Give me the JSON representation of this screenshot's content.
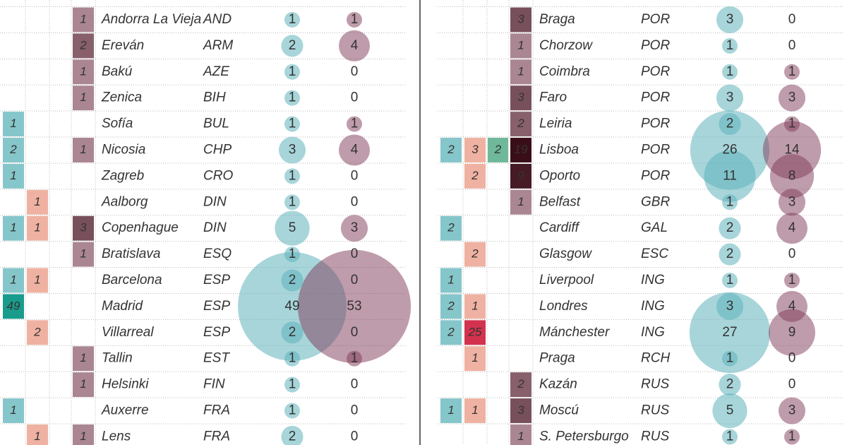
{
  "panels": [
    {
      "rows": [
        {
          "mauve": 1,
          "city": "Andorra La Vieja",
          "country": "AND",
          "home": 1,
          "away": 1
        },
        {
          "mauve": 2,
          "city": "Ereván",
          "country": "ARM",
          "home": 2,
          "away": 4
        },
        {
          "mauve": 1,
          "city": "Bakú",
          "country": "AZE",
          "home": 1,
          "away": 0
        },
        {
          "mauve": 1,
          "city": "Zenica",
          "country": "BIH",
          "home": 1,
          "away": 0
        },
        {
          "teal": 1,
          "city": "Sofía",
          "country": "BUL",
          "home": 1,
          "away": 1
        },
        {
          "teal": 2,
          "mauve": 1,
          "city": "Nicosia",
          "country": "CHP",
          "home": 3,
          "away": 4
        },
        {
          "teal": 1,
          "city": "Zagreb",
          "country": "CRO",
          "home": 1,
          "away": 0
        },
        {
          "salmon": 1,
          "city": "Aalborg",
          "country": "DIN",
          "home": 1,
          "away": 0
        },
        {
          "teal": 1,
          "salmon": 1,
          "mauve": 3,
          "city": "Copenhague",
          "country": "DIN",
          "home": 5,
          "away": 3
        },
        {
          "mauve": 1,
          "city": "Bratislava",
          "country": "ESQ",
          "home": 1,
          "away": 0
        },
        {
          "teal": 1,
          "salmon": 1,
          "city": "Barcelona",
          "country": "ESP",
          "home": 2,
          "away": 0
        },
        {
          "teal": 49,
          "city": "Madrid",
          "country": "ESP",
          "home": 49,
          "away": 53
        },
        {
          "salmon": 2,
          "city": "Villarreal",
          "country": "ESP",
          "home": 2,
          "away": 0
        },
        {
          "mauve": 1,
          "city": "Tallin",
          "country": "EST",
          "home": 1,
          "away": 1
        },
        {
          "mauve": 1,
          "city": "Helsinki",
          "country": "FIN",
          "home": 1,
          "away": 0
        },
        {
          "teal": 1,
          "city": "Auxerre",
          "country": "FRA",
          "home": 1,
          "away": 0
        },
        {
          "salmon": 1,
          "mauve": 1,
          "city": "Lens",
          "country": "FRA",
          "home": 2,
          "away": 0
        }
      ]
    },
    {
      "rows": [
        {
          "mauve": 3,
          "city": "Braga",
          "country": "POR",
          "home": 3,
          "away": 0
        },
        {
          "mauve": 1,
          "city": "Chorzow",
          "country": "POR",
          "home": 1,
          "away": 0
        },
        {
          "mauve": 1,
          "city": "Coimbra",
          "country": "POR",
          "home": 1,
          "away": 1
        },
        {
          "mauve": 3,
          "city": "Faro",
          "country": "POR",
          "home": 3,
          "away": 3
        },
        {
          "mauve": 2,
          "city": "Leiria",
          "country": "POR",
          "home": 2,
          "away": 1
        },
        {
          "teal": 2,
          "salmon": 3,
          "green": 2,
          "mauve": 19,
          "city": "Lisboa",
          "country": "POR",
          "home": 26,
          "away": 14
        },
        {
          "salmon": 2,
          "mauve": 9,
          "city": "Oporto",
          "country": "POR",
          "home": 11,
          "away": 8
        },
        {
          "mauve": 1,
          "city": "Belfast",
          "country": "GBR",
          "home": 1,
          "away": 3
        },
        {
          "teal": 2,
          "city": "Cardiff",
          "country": "GAL",
          "home": 2,
          "away": 4
        },
        {
          "salmon": 2,
          "city": "Glasgow",
          "country": "ESC",
          "home": 2,
          "away": 0
        },
        {
          "teal": 1,
          "city": "Liverpool",
          "country": "ING",
          "home": 1,
          "away": 1
        },
        {
          "teal": 2,
          "salmon": 1,
          "city": "Londres",
          "country": "ING",
          "home": 3,
          "away": 4
        },
        {
          "teal": 2,
          "salmon": 25,
          "city": "Mánchester",
          "country": "ING",
          "home": 27,
          "away": 9
        },
        {
          "salmon": 1,
          "city": "Praga",
          "country": "RCH",
          "home": 1,
          "away": 0
        },
        {
          "mauve": 2,
          "city": "Kazán",
          "country": "RUS",
          "home": 2,
          "away": 0
        },
        {
          "teal": 1,
          "salmon": 1,
          "mauve": 3,
          "city": "Moscú",
          "country": "RUS",
          "home": 5,
          "away": 3
        },
        {
          "mauve": 1,
          "city": "S. Petersburgo",
          "country": "RUS",
          "home": 1,
          "away": 1
        }
      ]
    }
  ]
}
